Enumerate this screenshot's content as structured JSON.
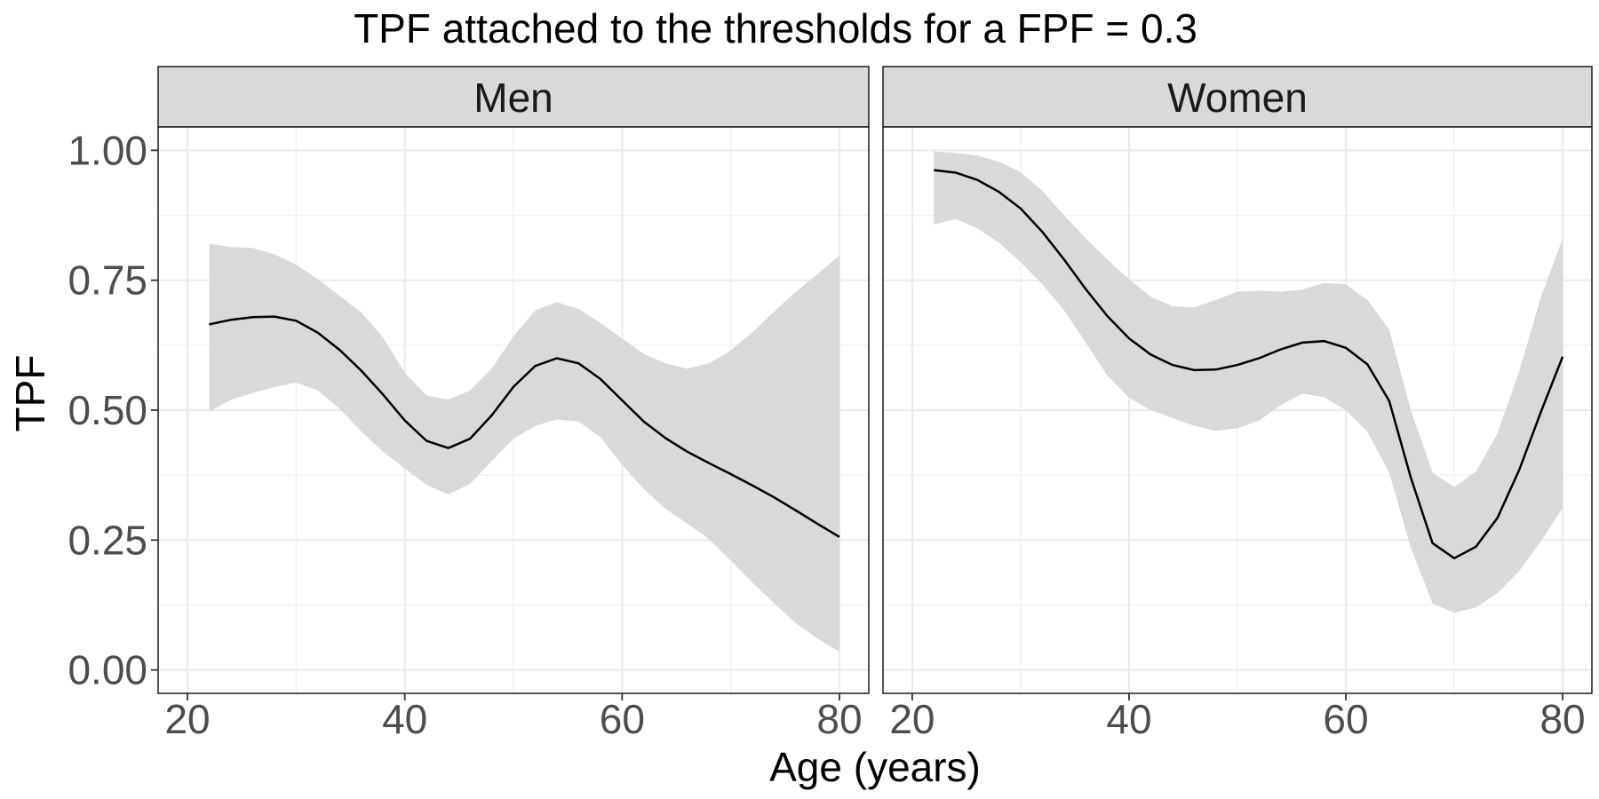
{
  "chart_data": {
    "type": "line",
    "title": "TPF attached to the thresholds for a FPF = 0.3",
    "xlabel": "Age (years)",
    "ylabel": "TPF",
    "xlim": [
      20,
      80
    ],
    "ylim": [
      0,
      1
    ],
    "x_ticks": [
      "20",
      "40",
      "60",
      "80"
    ],
    "x_tick_values": [
      20,
      40,
      60,
      80
    ],
    "y_ticks": [
      "0.00",
      "0.25",
      "0.50",
      "0.75",
      "1.00"
    ],
    "y_tick_values": [
      0,
      0.25,
      0.5,
      0.75,
      1.0
    ],
    "grid": true,
    "band_color": "#d9d9d9",
    "line_color": "#000000",
    "strip_color": "#d9d9d9",
    "facets": [
      {
        "label": "Men",
        "x": [
          22,
          24,
          26,
          28,
          30,
          32,
          34,
          36,
          38,
          40,
          42,
          44,
          46,
          48,
          50,
          52,
          54,
          56,
          58,
          60,
          62,
          64,
          66,
          68,
          70,
          72,
          74,
          76,
          78,
          80
        ],
        "y": [
          0.665,
          0.674,
          0.679,
          0.68,
          0.672,
          0.649,
          0.616,
          0.576,
          0.53,
          0.48,
          0.441,
          0.427,
          0.445,
          0.49,
          0.545,
          0.585,
          0.6,
          0.59,
          0.56,
          0.519,
          0.478,
          0.446,
          0.42,
          0.398,
          0.377,
          0.355,
          0.332,
          0.307,
          0.281,
          0.256
        ],
        "lower": [
          0.497,
          0.52,
          0.533,
          0.545,
          0.553,
          0.538,
          0.503,
          0.459,
          0.42,
          0.388,
          0.356,
          0.338,
          0.358,
          0.402,
          0.445,
          0.47,
          0.482,
          0.478,
          0.448,
          0.395,
          0.348,
          0.31,
          0.282,
          0.252,
          0.211,
          0.168,
          0.128,
          0.09,
          0.06,
          0.035
        ],
        "upper": [
          0.82,
          0.814,
          0.812,
          0.8,
          0.78,
          0.752,
          0.72,
          0.688,
          0.64,
          0.572,
          0.528,
          0.52,
          0.538,
          0.58,
          0.642,
          0.692,
          0.708,
          0.695,
          0.668,
          0.638,
          0.608,
          0.59,
          0.58,
          0.59,
          0.615,
          0.65,
          0.69,
          0.728,
          0.762,
          0.798
        ]
      },
      {
        "label": "Women",
        "x": [
          22,
          24,
          26,
          28,
          30,
          32,
          34,
          36,
          38,
          40,
          42,
          44,
          46,
          48,
          50,
          52,
          54,
          56,
          58,
          60,
          62,
          64,
          66,
          68,
          70,
          72,
          74,
          76,
          78,
          80
        ],
        "y": [
          0.962,
          0.957,
          0.943,
          0.92,
          0.888,
          0.843,
          0.79,
          0.733,
          0.681,
          0.638,
          0.607,
          0.587,
          0.577,
          0.578,
          0.587,
          0.6,
          0.617,
          0.63,
          0.633,
          0.62,
          0.588,
          0.518,
          0.37,
          0.244,
          0.215,
          0.237,
          0.293,
          0.385,
          0.497,
          0.603
        ],
        "lower": [
          0.857,
          0.868,
          0.85,
          0.822,
          0.785,
          0.742,
          0.692,
          0.63,
          0.566,
          0.524,
          0.5,
          0.485,
          0.47,
          0.46,
          0.465,
          0.48,
          0.51,
          0.532,
          0.525,
          0.5,
          0.458,
          0.38,
          0.235,
          0.128,
          0.11,
          0.12,
          0.148,
          0.19,
          0.248,
          0.312
        ],
        "upper": [
          0.998,
          0.995,
          0.99,
          0.978,
          0.958,
          0.922,
          0.875,
          0.83,
          0.79,
          0.752,
          0.718,
          0.7,
          0.698,
          0.712,
          0.728,
          0.73,
          0.728,
          0.732,
          0.745,
          0.742,
          0.712,
          0.655,
          0.5,
          0.38,
          0.352,
          0.382,
          0.455,
          0.575,
          0.718,
          0.83
        ]
      }
    ]
  }
}
